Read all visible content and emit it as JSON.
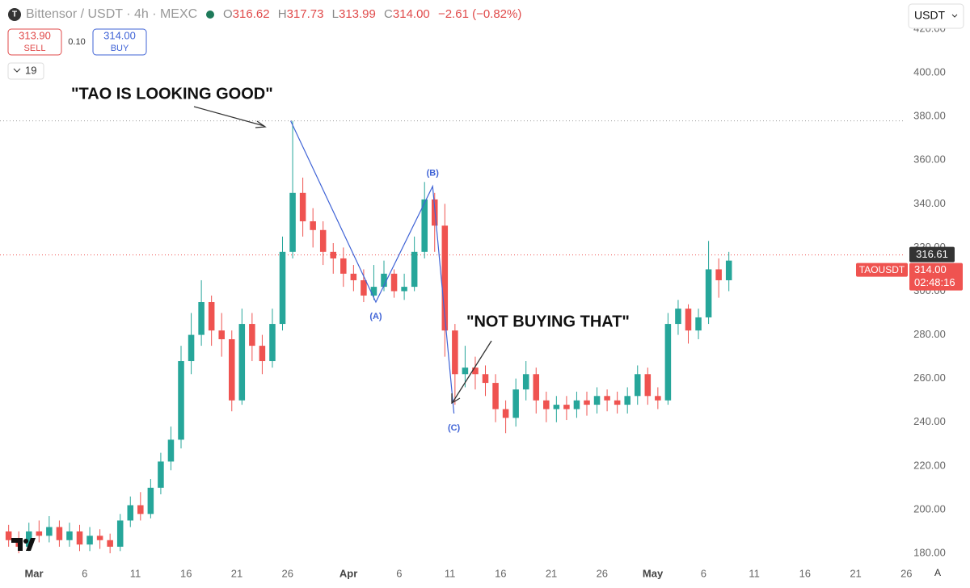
{
  "ui": {
    "symbol": "Bittensor / USDT · 4h · MEXC",
    "o_label": "O",
    "o": "316.62",
    "h_label": "H",
    "h": "317.73",
    "l_label": "L",
    "l": "313.99",
    "c_label": "C",
    "c": "314.00",
    "change": "−2.61 (−0.82%)",
    "sell_price": "313.90",
    "sell": "SELL",
    "spread": "0.10",
    "buy_price": "314.00",
    "buy": "BUY",
    "indicators": "19",
    "currency": "USDT",
    "auto": "A"
  },
  "chart_data": {
    "type": "candlestick",
    "annotations": [
      "\"TAO IS LOOKING GOOD\"",
      "\"NOT BUYING THAT\""
    ],
    "x": [
      -3,
      -2,
      -1,
      0,
      1,
      2,
      3,
      4,
      5,
      6,
      7,
      8,
      9,
      10,
      11,
      12,
      13,
      14,
      15,
      16,
      17,
      18,
      19,
      20,
      21,
      22,
      23,
      24,
      25,
      26,
      27,
      28,
      29,
      30,
      31,
      32,
      33,
      34,
      35,
      36,
      37,
      38,
      39,
      40,
      41,
      42,
      43,
      44,
      45,
      46,
      47,
      48,
      49,
      50,
      51,
      52,
      53,
      54,
      55,
      56,
      57,
      58,
      59,
      60,
      61,
      62,
      63,
      64,
      65,
      66,
      67,
      68
    ],
    "open": [
      190,
      186,
      183,
      190,
      188,
      192,
      186,
      190,
      184,
      188,
      186,
      183,
      195,
      202,
      198,
      210,
      222,
      232,
      268,
      280,
      295,
      282,
      278,
      250,
      285,
      275,
      268,
      285,
      318,
      345,
      332,
      328,
      318,
      315,
      308,
      305,
      298,
      302,
      308,
      300,
      302,
      318,
      342,
      330,
      282,
      262,
      265,
      262,
      258,
      246,
      242,
      255,
      262,
      250,
      246,
      248,
      246,
      250,
      248,
      252,
      250,
      248,
      252,
      262,
      252,
      250,
      285,
      292,
      282,
      288,
      310,
      305
    ],
    "high": [
      193,
      190,
      194,
      195,
      197,
      195,
      194,
      193,
      192,
      191,
      189,
      198,
      206,
      208,
      214,
      226,
      238,
      275,
      290,
      305,
      298,
      290,
      282,
      292,
      290,
      280,
      292,
      325,
      378,
      352,
      338,
      332,
      322,
      320,
      312,
      310,
      312,
      314,
      310,
      308,
      325,
      350,
      345,
      340,
      285,
      275,
      270,
      266,
      262,
      250,
      260,
      268,
      265,
      254,
      252,
      252,
      254,
      254,
      256,
      255,
      254,
      256,
      266,
      265,
      256,
      290,
      296,
      294,
      292,
      323,
      315,
      318
    ],
    "low": [
      183,
      180,
      181,
      185,
      185,
      183,
      183,
      181,
      181,
      182,
      180,
      181,
      192,
      195,
      196,
      207,
      218,
      228,
      262,
      275,
      275,
      270,
      245,
      248,
      268,
      262,
      265,
      282,
      315,
      325,
      320,
      312,
      308,
      302,
      300,
      295,
      296,
      300,
      297,
      296,
      300,
      315,
      318,
      270,
      248,
      256,
      255,
      252,
      240,
      235,
      238,
      250,
      244,
      240,
      240,
      241,
      242,
      243,
      244,
      245,
      244,
      244,
      248,
      248,
      246,
      248,
      280,
      276,
      278,
      285,
      297,
      300
    ],
    "close": [
      186,
      183,
      190,
      188,
      192,
      186,
      190,
      184,
      188,
      186,
      183,
      195,
      202,
      198,
      210,
      222,
      232,
      268,
      280,
      295,
      282,
      278,
      250,
      285,
      275,
      268,
      285,
      318,
      345,
      332,
      328,
      318,
      315,
      308,
      305,
      298,
      302,
      308,
      300,
      302,
      318,
      342,
      330,
      282,
      262,
      265,
      262,
      258,
      246,
      242,
      255,
      262,
      250,
      246,
      248,
      246,
      250,
      248,
      252,
      250,
      248,
      252,
      262,
      252,
      250,
      285,
      292,
      282,
      288,
      310,
      305,
      314
    ],
    "up_color": "#26a69a",
    "down_color": "#ef5350",
    "wave": {
      "x": [
        25.3,
        33.7,
        39.3,
        41.4
      ],
      "y": [
        378,
        295,
        348,
        244
      ],
      "labels": [
        null,
        "(A)",
        "(B)",
        "(C)"
      ],
      "color": "#3f63d6"
    },
    "reference_line": {
      "value": 378
    },
    "last_price": {
      "value": 316.61,
      "label": "316.61",
      "color": "#ef5350"
    },
    "symbol_tag": "TAOUSDT",
    "close_tag": "314.00",
    "countdown": "02:48:16",
    "xlim": [
      -3.35,
      92.27
    ],
    "xticks": [
      {
        "value": 0,
        "label": "Mar"
      },
      {
        "value": 5,
        "label": "6"
      },
      {
        "value": 10,
        "label": "11"
      },
      {
        "value": 15,
        "label": "16"
      },
      {
        "value": 20,
        "label": "21"
      },
      {
        "value": 25,
        "label": "26"
      },
      {
        "value": 31,
        "label": "Apr"
      },
      {
        "value": 36,
        "label": "6"
      },
      {
        "value": 41,
        "label": "11"
      },
      {
        "value": 46,
        "label": "16"
      },
      {
        "value": 51,
        "label": "21"
      },
      {
        "value": 56,
        "label": "26"
      },
      {
        "value": 61,
        "label": "May"
      },
      {
        "value": 66,
        "label": "6"
      },
      {
        "value": 71,
        "label": "11"
      },
      {
        "value": 76,
        "label": "16"
      },
      {
        "value": 81,
        "label": "21"
      },
      {
        "value": 86,
        "label": "26"
      }
    ],
    "ylim": [
      180,
      420
    ],
    "yticks": [
      {
        "value": 180,
        "label": "180.00"
      },
      {
        "value": 200,
        "label": "200.00"
      },
      {
        "value": 220,
        "label": "220.00"
      },
      {
        "value": 240,
        "label": "240.00"
      },
      {
        "value": 260,
        "label": "260.00"
      },
      {
        "value": 280,
        "label": "280.00"
      },
      {
        "value": 300,
        "label": "300.00"
      },
      {
        "value": 320,
        "label": "320.00"
      },
      {
        "value": 340,
        "label": "340.00"
      },
      {
        "value": 360,
        "label": "360.00"
      },
      {
        "value": 380,
        "label": "380.00"
      },
      {
        "value": 400,
        "label": "400.00"
      },
      {
        "value": 420,
        "label": "420.00"
      }
    ],
    "grid": false
  }
}
